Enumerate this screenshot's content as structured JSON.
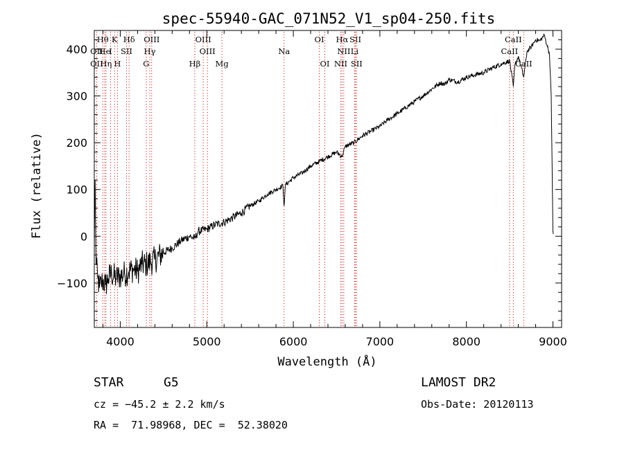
{
  "chart_data": {
    "type": "line",
    "title": "spec-55940-GAC_071N52_V1_sp04-250.fits",
    "xlabel": "Wavelength (Å)",
    "ylabel": "Flux (relative)",
    "xlim": [
      3700,
      9100
    ],
    "ylim": [
      -195,
      440
    ],
    "xticks": [
      4000,
      5000,
      6000,
      7000,
      8000,
      9000
    ],
    "yticks": [
      -100,
      0,
      100,
      200,
      300,
      400
    ],
    "grid": false,
    "line_color": "#000000",
    "marker_color": "#cc0000",
    "series": [
      {
        "x": [
          3700,
          3710,
          3720,
          3740,
          3760,
          3780,
          3800,
          3830,
          3860,
          3900,
          3950,
          4000,
          4050,
          4100,
          4150,
          4200,
          4250,
          4300,
          4350,
          4400,
          4500,
          4600,
          4700,
          4800,
          4860,
          4900,
          5000,
          5100,
          5200,
          5300,
          5400,
          5500,
          5600,
          5700,
          5800,
          5880,
          5893,
          5910,
          6000,
          6100,
          6200,
          6300,
          6400,
          6500,
          6563,
          6600,
          6700,
          6800,
          6900,
          7000,
          7100,
          7200,
          7300,
          7400,
          7500,
          7600,
          7700,
          7750,
          7800,
          7900,
          8000,
          8100,
          8200,
          8300,
          8400,
          8500,
          8542,
          8560,
          8600,
          8662,
          8700,
          8750,
          8800,
          8850,
          8900,
          8930,
          8960,
          8980,
          9000,
          9005
        ],
        "y": [
          -20,
          120,
          -60,
          -90,
          -110,
          -100,
          -95,
          -105,
          -90,
          -80,
          -90,
          -85,
          -80,
          -75,
          -70,
          -75,
          -60,
          -60,
          -55,
          -50,
          -35,
          -25,
          -10,
          0,
          -5,
          10,
          15,
          25,
          30,
          40,
          50,
          65,
          75,
          90,
          100,
          108,
          65,
          110,
          125,
          135,
          150,
          160,
          170,
          180,
          170,
          192,
          200,
          215,
          225,
          235,
          250,
          262,
          275,
          288,
          300,
          315,
          328,
          325,
          335,
          330,
          340,
          345,
          350,
          360,
          368,
          375,
          320,
          365,
          385,
          340,
          395,
          405,
          420,
          418,
          430,
          410,
          390,
          300,
          10,
          5
        ]
      }
    ],
    "line_markers": {
      "top": [
        {
          "label": "Hθ",
          "x": 3798
        },
        {
          "label": "K",
          "x": 3934
        },
        {
          "label": "Hδ",
          "x": 4102
        },
        {
          "label": "OIII",
          "x": 4363
        },
        {
          "label": "OIII",
          "x": 4959
        },
        {
          "label": "OI",
          "x": 6300
        },
        {
          "label": "Hα",
          "x": 6563
        },
        {
          "label": "SII",
          "x": 6717
        },
        {
          "label": "CaII",
          "x": 8542
        }
      ],
      "middle": [
        {
          "label": "OII",
          "x": 3727
        },
        {
          "label": "He",
          "x": 3820
        },
        {
          "label": "I",
          "x": 3888
        },
        {
          "label": "SII",
          "x": 4072
        },
        {
          "label": "Hγ",
          "x": 4341
        },
        {
          "label": "OIII",
          "x": 5007
        },
        {
          "label": "Na",
          "x": 5893
        },
        {
          "label": "NII",
          "x": 6583
        },
        {
          "label": "Li",
          "x": 6708
        },
        {
          "label": "CaII",
          "x": 8498
        }
      ],
      "bottom": [
        {
          "label": "OII",
          "x": 3727
        },
        {
          "label": "Hη",
          "x": 3835
        },
        {
          "label": "H",
          "x": 3968
        },
        {
          "label": "G",
          "x": 4300
        },
        {
          "label": "Hβ",
          "x": 4861
        },
        {
          "label": "Mg",
          "x": 5175
        },
        {
          "label": "OI",
          "x": 6364
        },
        {
          "label": "NII",
          "x": 6548
        },
        {
          "label": "SII",
          "x": 6731
        },
        {
          "label": "CaII",
          "x": 8662
        }
      ]
    }
  },
  "info": {
    "object_type": "STAR",
    "subclass": "G5",
    "survey": "LAMOST DR2",
    "redshift_line": "cz = −45.2 ± 2.2 km/s",
    "obs_date": "Obs-Date: 20120113",
    "coords": "RA =  71.98968, DEC =  52.38020"
  }
}
